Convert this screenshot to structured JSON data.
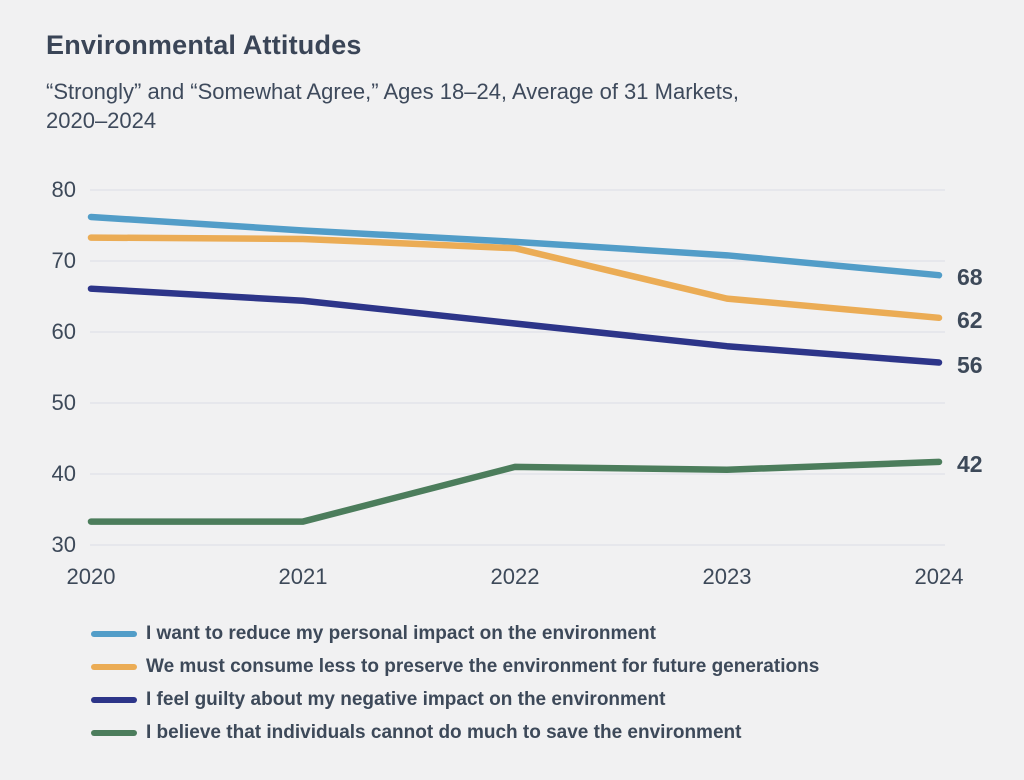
{
  "title": "Environmental Attitudes",
  "subtitle": {
    "line1": "“Strongly” and “Somewhat Agree,” Ages 18–24, Average of 31 Markets,",
    "line2": "2020–2024"
  },
  "colors": {
    "background": "#F1F1F2",
    "text": "#3D4959",
    "gridline": "#E3E4E9",
    "series_blue": "#529DC8",
    "series_orange": "#EBAC55",
    "series_navy": "#2D3589",
    "series_green": "#4C7D5C"
  },
  "chart_data": {
    "type": "line",
    "x": [
      2020,
      2021,
      2022,
      2023,
      2024
    ],
    "xticks": [
      "2020",
      "2021",
      "2022",
      "2023",
      "2024"
    ],
    "yticks": [
      80,
      70,
      60,
      50,
      40,
      30
    ],
    "ylim": [
      30,
      80
    ],
    "grid": "horizontal",
    "legend_position": "bottom",
    "series": [
      {
        "name": "I want to reduce my personal impact on the environment",
        "color": "#529DC8",
        "values": [
          76.2,
          74.3,
          72.7,
          70.8,
          68
        ],
        "end_label": "68"
      },
      {
        "name": "We must consume less to preserve the environment for future generations",
        "color": "#EBAC55",
        "values": [
          73.3,
          73.1,
          71.8,
          64.7,
          62
        ],
        "end_label": "62"
      },
      {
        "name": "I feel guilty about my negative impact on the environment",
        "color": "#2D3589",
        "values": [
          66.1,
          64.4,
          61.2,
          58,
          55.7
        ],
        "end_label": "56"
      },
      {
        "name": "I believe that individuals cannot do much to save the environment",
        "color": "#4C7D5C",
        "values": [
          33.3,
          33.3,
          41,
          40.6,
          41.7
        ],
        "end_label": "42"
      }
    ]
  }
}
